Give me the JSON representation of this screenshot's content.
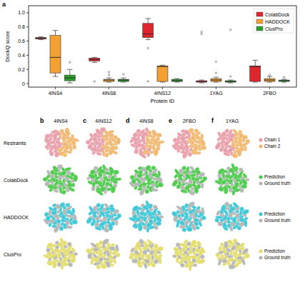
{
  "chart_data": {
    "type": "box",
    "xlabel": "Protein ID",
    "ylabel": "DockQ score",
    "categories": [
      "4INS4",
      "4INS8",
      "4INS12",
      "1YAG",
      "2FBO"
    ],
    "series": [
      {
        "name": "ColabDock",
        "color": "#e0262d",
        "values": [
          {
            "min": 0.62,
            "q1": 0.63,
            "median": 0.64,
            "q3": 0.65,
            "max": 0.66,
            "outliers": []
          },
          {
            "min": 0.3,
            "q1": 0.32,
            "median": 0.34,
            "q3": 0.36,
            "max": 0.37,
            "outliers": [
              0.03
            ]
          },
          {
            "min": 0.62,
            "q1": 0.65,
            "median": 0.7,
            "q3": 0.85,
            "max": 0.92,
            "outliers": [
              0.5,
              0.03
            ]
          },
          {
            "min": 0.01,
            "q1": 0.02,
            "median": 0.03,
            "q3": 0.04,
            "max": 0.05,
            "outliers": [
              0.73,
              0.7
            ]
          },
          {
            "min": 0.02,
            "q1": 0.03,
            "median": 0.24,
            "q3": 0.25,
            "max": 0.33,
            "outliers": []
          }
        ]
      },
      {
        "name": "HADDOCK",
        "color": "#f5a033",
        "values": [
          {
            "min": 0.1,
            "q1": 0.15,
            "median": 0.37,
            "q3": 0.68,
            "max": 0.75,
            "outliers": []
          },
          {
            "min": 0.02,
            "q1": 0.03,
            "median": 0.05,
            "q3": 0.06,
            "max": 0.08,
            "outliers": [
              0.16,
              0.12
            ]
          },
          {
            "min": 0.02,
            "q1": 0.03,
            "median": 0.24,
            "q3": 0.25,
            "max": 0.26,
            "outliers": []
          },
          {
            "min": 0.02,
            "q1": 0.03,
            "median": 0.05,
            "q3": 0.07,
            "max": 0.09,
            "outliers": [
              0.31,
              0.15
            ]
          },
          {
            "min": 0.02,
            "q1": 0.03,
            "median": 0.05,
            "q3": 0.07,
            "max": 0.1,
            "outliers": [
              0.12
            ]
          }
        ]
      },
      {
        "name": "ClusPro",
        "color": "#2ca02c",
        "values": [
          {
            "min": 0.01,
            "q1": 0.04,
            "median": 0.08,
            "q3": 0.12,
            "max": 0.2,
            "outliers": [
              0.3
            ]
          },
          {
            "min": 0.02,
            "q1": 0.03,
            "median": 0.05,
            "q3": 0.06,
            "max": 0.08,
            "outliers": [
              0.13
            ]
          },
          {
            "min": 0.02,
            "q1": 0.03,
            "median": 0.04,
            "q3": 0.06,
            "max": 0.07,
            "outliers": []
          },
          {
            "min": 0.01,
            "q1": 0.02,
            "median": 0.03,
            "q3": 0.04,
            "max": 0.05,
            "outliers": [
              0.76,
              0.1
            ]
          },
          {
            "min": 0.02,
            "q1": 0.03,
            "median": 0.04,
            "q3": 0.05,
            "max": 0.06,
            "outliers": [
              0.09
            ]
          }
        ]
      }
    ],
    "ylim": [
      -0.05,
      1.1
    ],
    "yticks": [
      0,
      0.2,
      0.4,
      0.6,
      0.8,
      {
        "value": 1,
        "label": "1.0"
      }
    ],
    "legend": "upper right",
    "grid": false
  },
  "panel_labels": [
    "a",
    "b",
    "c",
    "d",
    "e",
    "f"
  ],
  "structures": {
    "columns": [
      "4INS4",
      "4INS12",
      "4INS8",
      "2FBO",
      "1YAG"
    ],
    "rows": [
      "Restraints",
      "ColabDock",
      "HADDOCK",
      "ClusPro"
    ],
    "restraint_legend": [
      {
        "name": "Chain 1",
        "color": "#e89aa6"
      },
      {
        "name": "Chain 2",
        "color": "#f0b56a"
      }
    ],
    "ground_truth_color": "#b4b4b4",
    "method_legends": [
      {
        "prediction": "Prediction",
        "ground_truth": "Ground truth",
        "color": "#44c944"
      },
      {
        "prediction": "Prediction",
        "ground_truth": "Ground truth",
        "color": "#33c6d6"
      },
      {
        "prediction": "Prediction",
        "ground_truth": "Ground truth",
        "color": "#e2dc66"
      }
    ]
  }
}
